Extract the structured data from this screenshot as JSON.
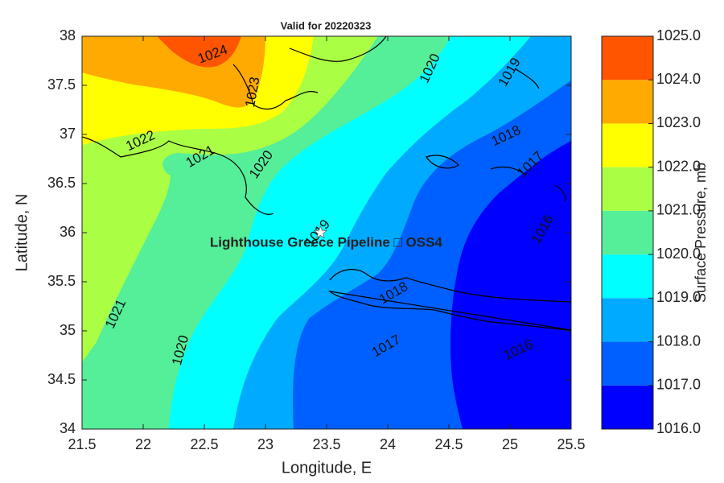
{
  "chart_data": {
    "type": "contour",
    "title": "Valid for 20220323",
    "xlabel": "Longitude, E",
    "ylabel": "Latitude, N",
    "xlim": [
      21.5,
      25.5
    ],
    "xticks": [
      21.5,
      22,
      22.5,
      23,
      23.5,
      24,
      24.5,
      25,
      25.5
    ],
    "ylim": [
      34,
      38
    ],
    "yticks": [
      34,
      34.5,
      35,
      35.5,
      36,
      36.5,
      37,
      37.5,
      38
    ],
    "colorbar": {
      "label": "Surface Pressure, mb",
      "lim": [
        1016,
        1025
      ],
      "colors": [
        "#0000ff",
        "#0060ff",
        "#00aaff",
        "#00ffff",
        "#55ee99",
        "#aaff44",
        "#ffff00",
        "#ffaa00",
        "#ff5500"
      ],
      "ticks": [
        {
          "value": 1016,
          "label": "1016.0"
        },
        {
          "value": 1017,
          "label": "1017.0"
        },
        {
          "value": 1018,
          "label": "1018.0"
        },
        {
          "value": 1019,
          "label": "1019.0"
        },
        {
          "value": 1020,
          "label": "1020.0"
        },
        {
          "value": 1021,
          "label": "1021.0"
        },
        {
          "value": 1022,
          "label": "1022.0"
        },
        {
          "value": 1023,
          "label": "1023.0"
        },
        {
          "value": 1024,
          "label": "1024.0"
        },
        {
          "value": 1025,
          "label": "1025.0"
        }
      ]
    },
    "contour_labels": [
      {
        "value": 1024,
        "lon": 22.57,
        "lat": 37.81
      },
      {
        "value": 1023,
        "lon": 22.9,
        "lat": 37.43
      },
      {
        "value": 1022,
        "lon": 21.98,
        "lat": 36.93
      },
      {
        "value": 1021,
        "lon": 22.47,
        "lat": 36.77
      },
      {
        "value": 1020,
        "lon": 22.97,
        "lat": 36.69
      },
      {
        "value": 1020,
        "lon": 24.35,
        "lat": 37.67
      },
      {
        "value": 1019,
        "lon": 25.0,
        "lat": 37.63
      },
      {
        "value": 1018,
        "lon": 24.97,
        "lat": 36.98
      },
      {
        "value": 1017,
        "lon": 25.17,
        "lat": 36.69
      },
      {
        "value": 1019,
        "lon": 23.43,
        "lat": 35.99
      },
      {
        "value": 1016,
        "lon": 25.27,
        "lat": 36.03
      },
      {
        "value": 1018,
        "lon": 24.05,
        "lat": 35.38
      },
      {
        "value": 1021,
        "lon": 21.78,
        "lat": 35.17
      },
      {
        "value": 1020,
        "lon": 22.31,
        "lat": 34.8
      },
      {
        "value": 1017,
        "lon": 23.99,
        "lat": 34.84
      },
      {
        "value": 1016,
        "lon": 25.07,
        "lat": 34.8
      }
    ],
    "site": {
      "label": "Lighthouse Greece Pipeline □ OSS4",
      "lon": 23.45,
      "lat": 36.0
    }
  }
}
